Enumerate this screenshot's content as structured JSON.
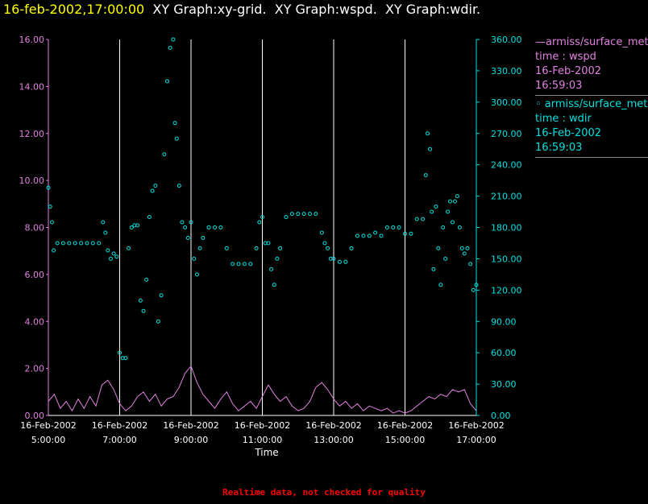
{
  "title": {
    "timestamp": "16-feb-2002,17:00:00",
    "rest": "  XY Graph:xy-grid.  XY Graph:wspd.  XY Graph:wdir."
  },
  "footer": "Realtime data, not checked for quality",
  "legend": [
    {
      "name": "armiss/surface_met",
      "marker": "line",
      "color": "#e080e0",
      "lines": [
        "time : wspd",
        "16-Feb-2002",
        "16:59:03"
      ]
    },
    {
      "name": "armiss/surface_met",
      "marker": "circle",
      "color": "#00e0e0",
      "lines": [
        "time : wdir",
        "16-Feb-2002",
        "16:59:03"
      ]
    }
  ],
  "chart_data": {
    "type": "line",
    "xlabel": "Time",
    "x_range": [
      "2002-02-16 05:00:00",
      "2002-02-16 17:00:00"
    ],
    "x_ticks": [
      {
        "date": "16-Feb-2002",
        "time": "5:00:00",
        "t": "2002-02-16 05:00"
      },
      {
        "date": "16-Feb-2002",
        "time": "7:00:00",
        "t": "2002-02-16 07:00"
      },
      {
        "date": "16-Feb-2002",
        "time": "9:00:00",
        "t": "2002-02-16 09:00"
      },
      {
        "date": "16-Feb-2002",
        "time": "11:00:00",
        "t": "2002-02-16 11:00"
      },
      {
        "date": "16-Feb-2002",
        "time": "13:00:00",
        "t": "2002-02-16 13:00"
      },
      {
        "date": "16-Feb-2002",
        "time": "15:00:00",
        "t": "2002-02-16 15:00"
      },
      {
        "date": "16-Feb-2002",
        "time": "17:00:00",
        "t": "2002-02-16 17:00"
      }
    ],
    "y_left": {
      "min": 0,
      "max": 16,
      "ticks": [
        "0.00",
        "2.00",
        "4.00",
        "6.00",
        "8.00",
        "10.00",
        "12.00",
        "14.00",
        "16.00"
      ],
      "color": "#e080e0"
    },
    "y_right": {
      "min": 0,
      "max": 360,
      "ticks": [
        "0.00",
        "30.00",
        "60.00",
        "90.00",
        "120.00",
        "150.00",
        "180.00",
        "210.00",
        "240.00",
        "270.00",
        "300.00",
        "330.00",
        "360.00"
      ],
      "color": "#00e0e0"
    },
    "grid": "vertical",
    "series": [
      {
        "name": "armiss/surface_met time : wspd",
        "axis": "left",
        "kind": "line",
        "points": [
          [
            "2002-02-16 05:00",
            0.6
          ],
          [
            "2002-02-16 05:10",
            0.9
          ],
          [
            "2002-02-16 05:20",
            0.3
          ],
          [
            "2002-02-16 05:30",
            0.6
          ],
          [
            "2002-02-16 05:40",
            0.2
          ],
          [
            "2002-02-16 05:50",
            0.7
          ],
          [
            "2002-02-16 06:00",
            0.3
          ],
          [
            "2002-02-16 06:10",
            0.8
          ],
          [
            "2002-02-16 06:20",
            0.4
          ],
          [
            "2002-02-16 06:30",
            1.3
          ],
          [
            "2002-02-16 06:40",
            1.5
          ],
          [
            "2002-02-16 06:50",
            1.1
          ],
          [
            "2002-02-16 07:00",
            0.5
          ],
          [
            "2002-02-16 07:10",
            0.2
          ],
          [
            "2002-02-16 07:20",
            0.4
          ],
          [
            "2002-02-16 07:30",
            0.8
          ],
          [
            "2002-02-16 07:40",
            1.0
          ],
          [
            "2002-02-16 07:50",
            0.6
          ],
          [
            "2002-02-16 08:00",
            0.9
          ],
          [
            "2002-02-16 08:10",
            0.4
          ],
          [
            "2002-02-16 08:20",
            0.7
          ],
          [
            "2002-02-16 08:30",
            0.8
          ],
          [
            "2002-02-16 08:40",
            1.2
          ],
          [
            "2002-02-16 08:50",
            1.8
          ],
          [
            "2002-02-16 09:00",
            2.1
          ],
          [
            "2002-02-16 09:10",
            1.4
          ],
          [
            "2002-02-16 09:20",
            0.9
          ],
          [
            "2002-02-16 09:30",
            0.6
          ],
          [
            "2002-02-16 09:40",
            0.3
          ],
          [
            "2002-02-16 09:50",
            0.7
          ],
          [
            "2002-02-16 10:00",
            1.0
          ],
          [
            "2002-02-16 10:10",
            0.5
          ],
          [
            "2002-02-16 10:20",
            0.2
          ],
          [
            "2002-02-16 10:30",
            0.4
          ],
          [
            "2002-02-16 10:40",
            0.6
          ],
          [
            "2002-02-16 10:50",
            0.3
          ],
          [
            "2002-02-16 11:00",
            0.8
          ],
          [
            "2002-02-16 11:10",
            1.3
          ],
          [
            "2002-02-16 11:20",
            0.9
          ],
          [
            "2002-02-16 11:30",
            0.6
          ],
          [
            "2002-02-16 11:40",
            0.8
          ],
          [
            "2002-02-16 11:50",
            0.4
          ],
          [
            "2002-02-16 12:00",
            0.2
          ],
          [
            "2002-02-16 12:10",
            0.3
          ],
          [
            "2002-02-16 12:20",
            0.6
          ],
          [
            "2002-02-16 12:30",
            1.2
          ],
          [
            "2002-02-16 12:40",
            1.4
          ],
          [
            "2002-02-16 12:50",
            1.1
          ],
          [
            "2002-02-16 13:00",
            0.7
          ],
          [
            "2002-02-16 13:10",
            0.4
          ],
          [
            "2002-02-16 13:20",
            0.6
          ],
          [
            "2002-02-16 13:30",
            0.3
          ],
          [
            "2002-02-16 13:40",
            0.5
          ],
          [
            "2002-02-16 13:50",
            0.2
          ],
          [
            "2002-02-16 14:00",
            0.4
          ],
          [
            "2002-02-16 14:10",
            0.3
          ],
          [
            "2002-02-16 14:20",
            0.2
          ],
          [
            "2002-02-16 14:30",
            0.3
          ],
          [
            "2002-02-16 14:40",
            0.1
          ],
          [
            "2002-02-16 14:50",
            0.2
          ],
          [
            "2002-02-16 15:00",
            0.1
          ],
          [
            "2002-02-16 15:10",
            0.2
          ],
          [
            "2002-02-16 15:20",
            0.4
          ],
          [
            "2002-02-16 15:30",
            0.6
          ],
          [
            "2002-02-16 15:40",
            0.8
          ],
          [
            "2002-02-16 15:50",
            0.7
          ],
          [
            "2002-02-16 16:00",
            0.9
          ],
          [
            "2002-02-16 16:10",
            0.8
          ],
          [
            "2002-02-16 16:20",
            1.1
          ],
          [
            "2002-02-16 16:30",
            1.0
          ],
          [
            "2002-02-16 16:40",
            1.1
          ],
          [
            "2002-02-16 16:50",
            0.5
          ],
          [
            "2002-02-16 17:00",
            0.2
          ]
        ]
      },
      {
        "name": "armiss/surface_met time : wdir",
        "axis": "right",
        "kind": "scatter",
        "points": [
          [
            "2002-02-16 05:00",
            218
          ],
          [
            "2002-02-16 05:03",
            200
          ],
          [
            "2002-02-16 05:06",
            185
          ],
          [
            "2002-02-16 05:09",
            158
          ],
          [
            "2002-02-16 05:15",
            165
          ],
          [
            "2002-02-16 05:25",
            165
          ],
          [
            "2002-02-16 05:35",
            165
          ],
          [
            "2002-02-16 05:45",
            165
          ],
          [
            "2002-02-16 05:55",
            165
          ],
          [
            "2002-02-16 06:05",
            165
          ],
          [
            "2002-02-16 06:15",
            165
          ],
          [
            "2002-02-16 06:25",
            165
          ],
          [
            "2002-02-16 06:32",
            185
          ],
          [
            "2002-02-16 06:36",
            175
          ],
          [
            "2002-02-16 06:40",
            158
          ],
          [
            "2002-02-16 06:45",
            150
          ],
          [
            "2002-02-16 06:50",
            155
          ],
          [
            "2002-02-16 06:55",
            152
          ],
          [
            "2002-02-16 07:00",
            60
          ],
          [
            "2002-02-16 07:05",
            55
          ],
          [
            "2002-02-16 07:10",
            55
          ],
          [
            "2002-02-16 07:15",
            160
          ],
          [
            "2002-02-16 07:20",
            180
          ],
          [
            "2002-02-16 07:25",
            182
          ],
          [
            "2002-02-16 07:30",
            182
          ],
          [
            "2002-02-16 07:35",
            110
          ],
          [
            "2002-02-16 07:40",
            100
          ],
          [
            "2002-02-16 07:45",
            130
          ],
          [
            "2002-02-16 07:50",
            190
          ],
          [
            "2002-02-16 07:55",
            215
          ],
          [
            "2002-02-16 08:00",
            220
          ],
          [
            "2002-02-16 08:05",
            90
          ],
          [
            "2002-02-16 08:10",
            115
          ],
          [
            "2002-02-16 08:15",
            250
          ],
          [
            "2002-02-16 08:20",
            320
          ],
          [
            "2002-02-16 08:25",
            352
          ],
          [
            "2002-02-16 08:30",
            360
          ],
          [
            "2002-02-16 08:33",
            280
          ],
          [
            "2002-02-16 08:36",
            265
          ],
          [
            "2002-02-16 08:40",
            220
          ],
          [
            "2002-02-16 08:45",
            185
          ],
          [
            "2002-02-16 08:50",
            180
          ],
          [
            "2002-02-16 08:55",
            170
          ],
          [
            "2002-02-16 09:00",
            185
          ],
          [
            "2002-02-16 09:05",
            150
          ],
          [
            "2002-02-16 09:10",
            135
          ],
          [
            "2002-02-16 09:15",
            160
          ],
          [
            "2002-02-16 09:20",
            170
          ],
          [
            "2002-02-16 09:30",
            180
          ],
          [
            "2002-02-16 09:40",
            180
          ],
          [
            "2002-02-16 09:50",
            180
          ],
          [
            "2002-02-16 10:00",
            160
          ],
          [
            "2002-02-16 10:10",
            145
          ],
          [
            "2002-02-16 10:20",
            145
          ],
          [
            "2002-02-16 10:30",
            145
          ],
          [
            "2002-02-16 10:40",
            145
          ],
          [
            "2002-02-16 10:50",
            160
          ],
          [
            "2002-02-16 10:55",
            185
          ],
          [
            "2002-02-16 11:00",
            190
          ],
          [
            "2002-02-16 11:05",
            165
          ],
          [
            "2002-02-16 11:10",
            165
          ],
          [
            "2002-02-16 11:15",
            140
          ],
          [
            "2002-02-16 11:20",
            125
          ],
          [
            "2002-02-16 11:25",
            150
          ],
          [
            "2002-02-16 11:30",
            160
          ],
          [
            "2002-02-16 11:40",
            190
          ],
          [
            "2002-02-16 11:50",
            193
          ],
          [
            "2002-02-16 12:00",
            193
          ],
          [
            "2002-02-16 12:10",
            193
          ],
          [
            "2002-02-16 12:20",
            193
          ],
          [
            "2002-02-16 12:30",
            193
          ],
          [
            "2002-02-16 12:40",
            175
          ],
          [
            "2002-02-16 12:45",
            165
          ],
          [
            "2002-02-16 12:50",
            160
          ],
          [
            "2002-02-16 12:55",
            150
          ],
          [
            "2002-02-16 13:00",
            150
          ],
          [
            "2002-02-16 13:10",
            147
          ],
          [
            "2002-02-16 13:20",
            147
          ],
          [
            "2002-02-16 13:30",
            160
          ],
          [
            "2002-02-16 13:40",
            172
          ],
          [
            "2002-02-16 13:50",
            172
          ],
          [
            "2002-02-16 14:00",
            172
          ],
          [
            "2002-02-16 14:10",
            175
          ],
          [
            "2002-02-16 14:20",
            172
          ],
          [
            "2002-02-16 14:30",
            180
          ],
          [
            "2002-02-16 14:40",
            180
          ],
          [
            "2002-02-16 14:50",
            180
          ],
          [
            "2002-02-16 15:00",
            174
          ],
          [
            "2002-02-16 15:10",
            174
          ],
          [
            "2002-02-16 15:20",
            188
          ],
          [
            "2002-02-16 15:30",
            188
          ],
          [
            "2002-02-16 15:35",
            230
          ],
          [
            "2002-02-16 15:38",
            270
          ],
          [
            "2002-02-16 15:42",
            255
          ],
          [
            "2002-02-16 15:45",
            195
          ],
          [
            "2002-02-16 15:48",
            140
          ],
          [
            "2002-02-16 15:52",
            200
          ],
          [
            "2002-02-16 15:56",
            160
          ],
          [
            "2002-02-16 16:00",
            125
          ],
          [
            "2002-02-16 16:04",
            180
          ],
          [
            "2002-02-16 16:08",
            150
          ],
          [
            "2002-02-16 16:12",
            195
          ],
          [
            "2002-02-16 16:16",
            205
          ],
          [
            "2002-02-16 16:20",
            185
          ],
          [
            "2002-02-16 16:24",
            205
          ],
          [
            "2002-02-16 16:28",
            210
          ],
          [
            "2002-02-16 16:32",
            180
          ],
          [
            "2002-02-16 16:36",
            160
          ],
          [
            "2002-02-16 16:40",
            155
          ],
          [
            "2002-02-16 16:45",
            160
          ],
          [
            "2002-02-16 16:50",
            145
          ],
          [
            "2002-02-16 16:55",
            120
          ],
          [
            "2002-02-16 17:00",
            125
          ]
        ]
      }
    ]
  }
}
